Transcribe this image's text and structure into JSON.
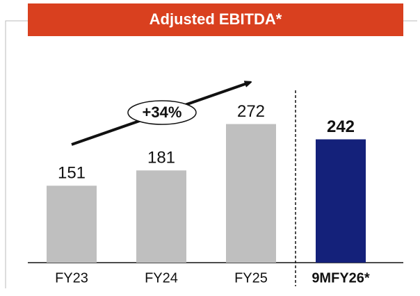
{
  "chart_data": {
    "type": "bar",
    "title": "Adjusted EBITDA*",
    "categories": [
      "FY23",
      "FY24",
      "FY25",
      "9MFY26*"
    ],
    "values": [
      151,
      181,
      272,
      242
    ],
    "colors": [
      "#bfbfbf",
      "#bfbfbf",
      "#bfbfbf",
      "#14217a"
    ],
    "annotation": "+34%",
    "ylim": [
      0,
      300
    ]
  }
}
